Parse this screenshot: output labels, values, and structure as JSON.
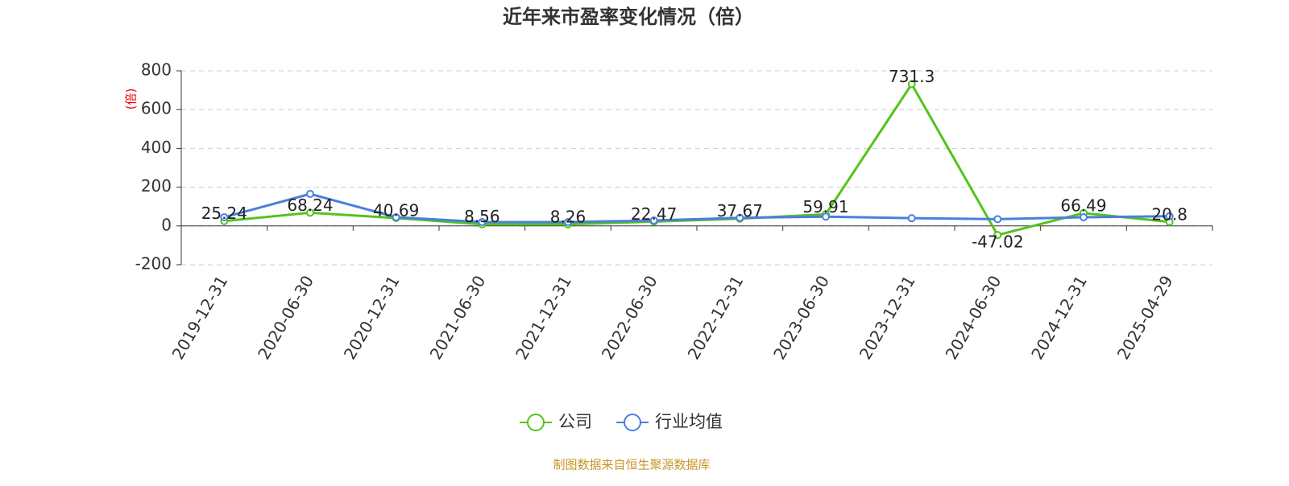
{
  "chart_data": {
    "type": "line",
    "title": "近年来市盈率变化情况（倍）",
    "y_label": "(倍)",
    "source": "制图数据来自恒生聚源数据库",
    "categories": [
      "2019-12-31",
      "2020-06-30",
      "2020-12-31",
      "2021-06-30",
      "2021-12-31",
      "2022-06-30",
      "2022-12-31",
      "2023-06-30",
      "2023-12-31",
      "2024-06-30",
      "2024-12-31",
      "2025-04-29"
    ],
    "series": [
      {
        "name": "公司",
        "color": "#52c41a",
        "data_labels": true,
        "values": [
          25.24,
          68.24,
          40.69,
          8.56,
          8.26,
          22.47,
          37.67,
          59.91,
          731.3,
          -47.02,
          66.49,
          20.8
        ]
      },
      {
        "name": "行业均值",
        "color": "#4a7fdc",
        "data_labels": false,
        "values": [
          45,
          165,
          45,
          20,
          20,
          28,
          42,
          48,
          40,
          35,
          45,
          50
        ]
      }
    ],
    "ylim": [
      -200,
      800
    ],
    "yticks": [
      -200,
      0,
      200,
      400,
      600,
      800
    ],
    "grid": true
  }
}
